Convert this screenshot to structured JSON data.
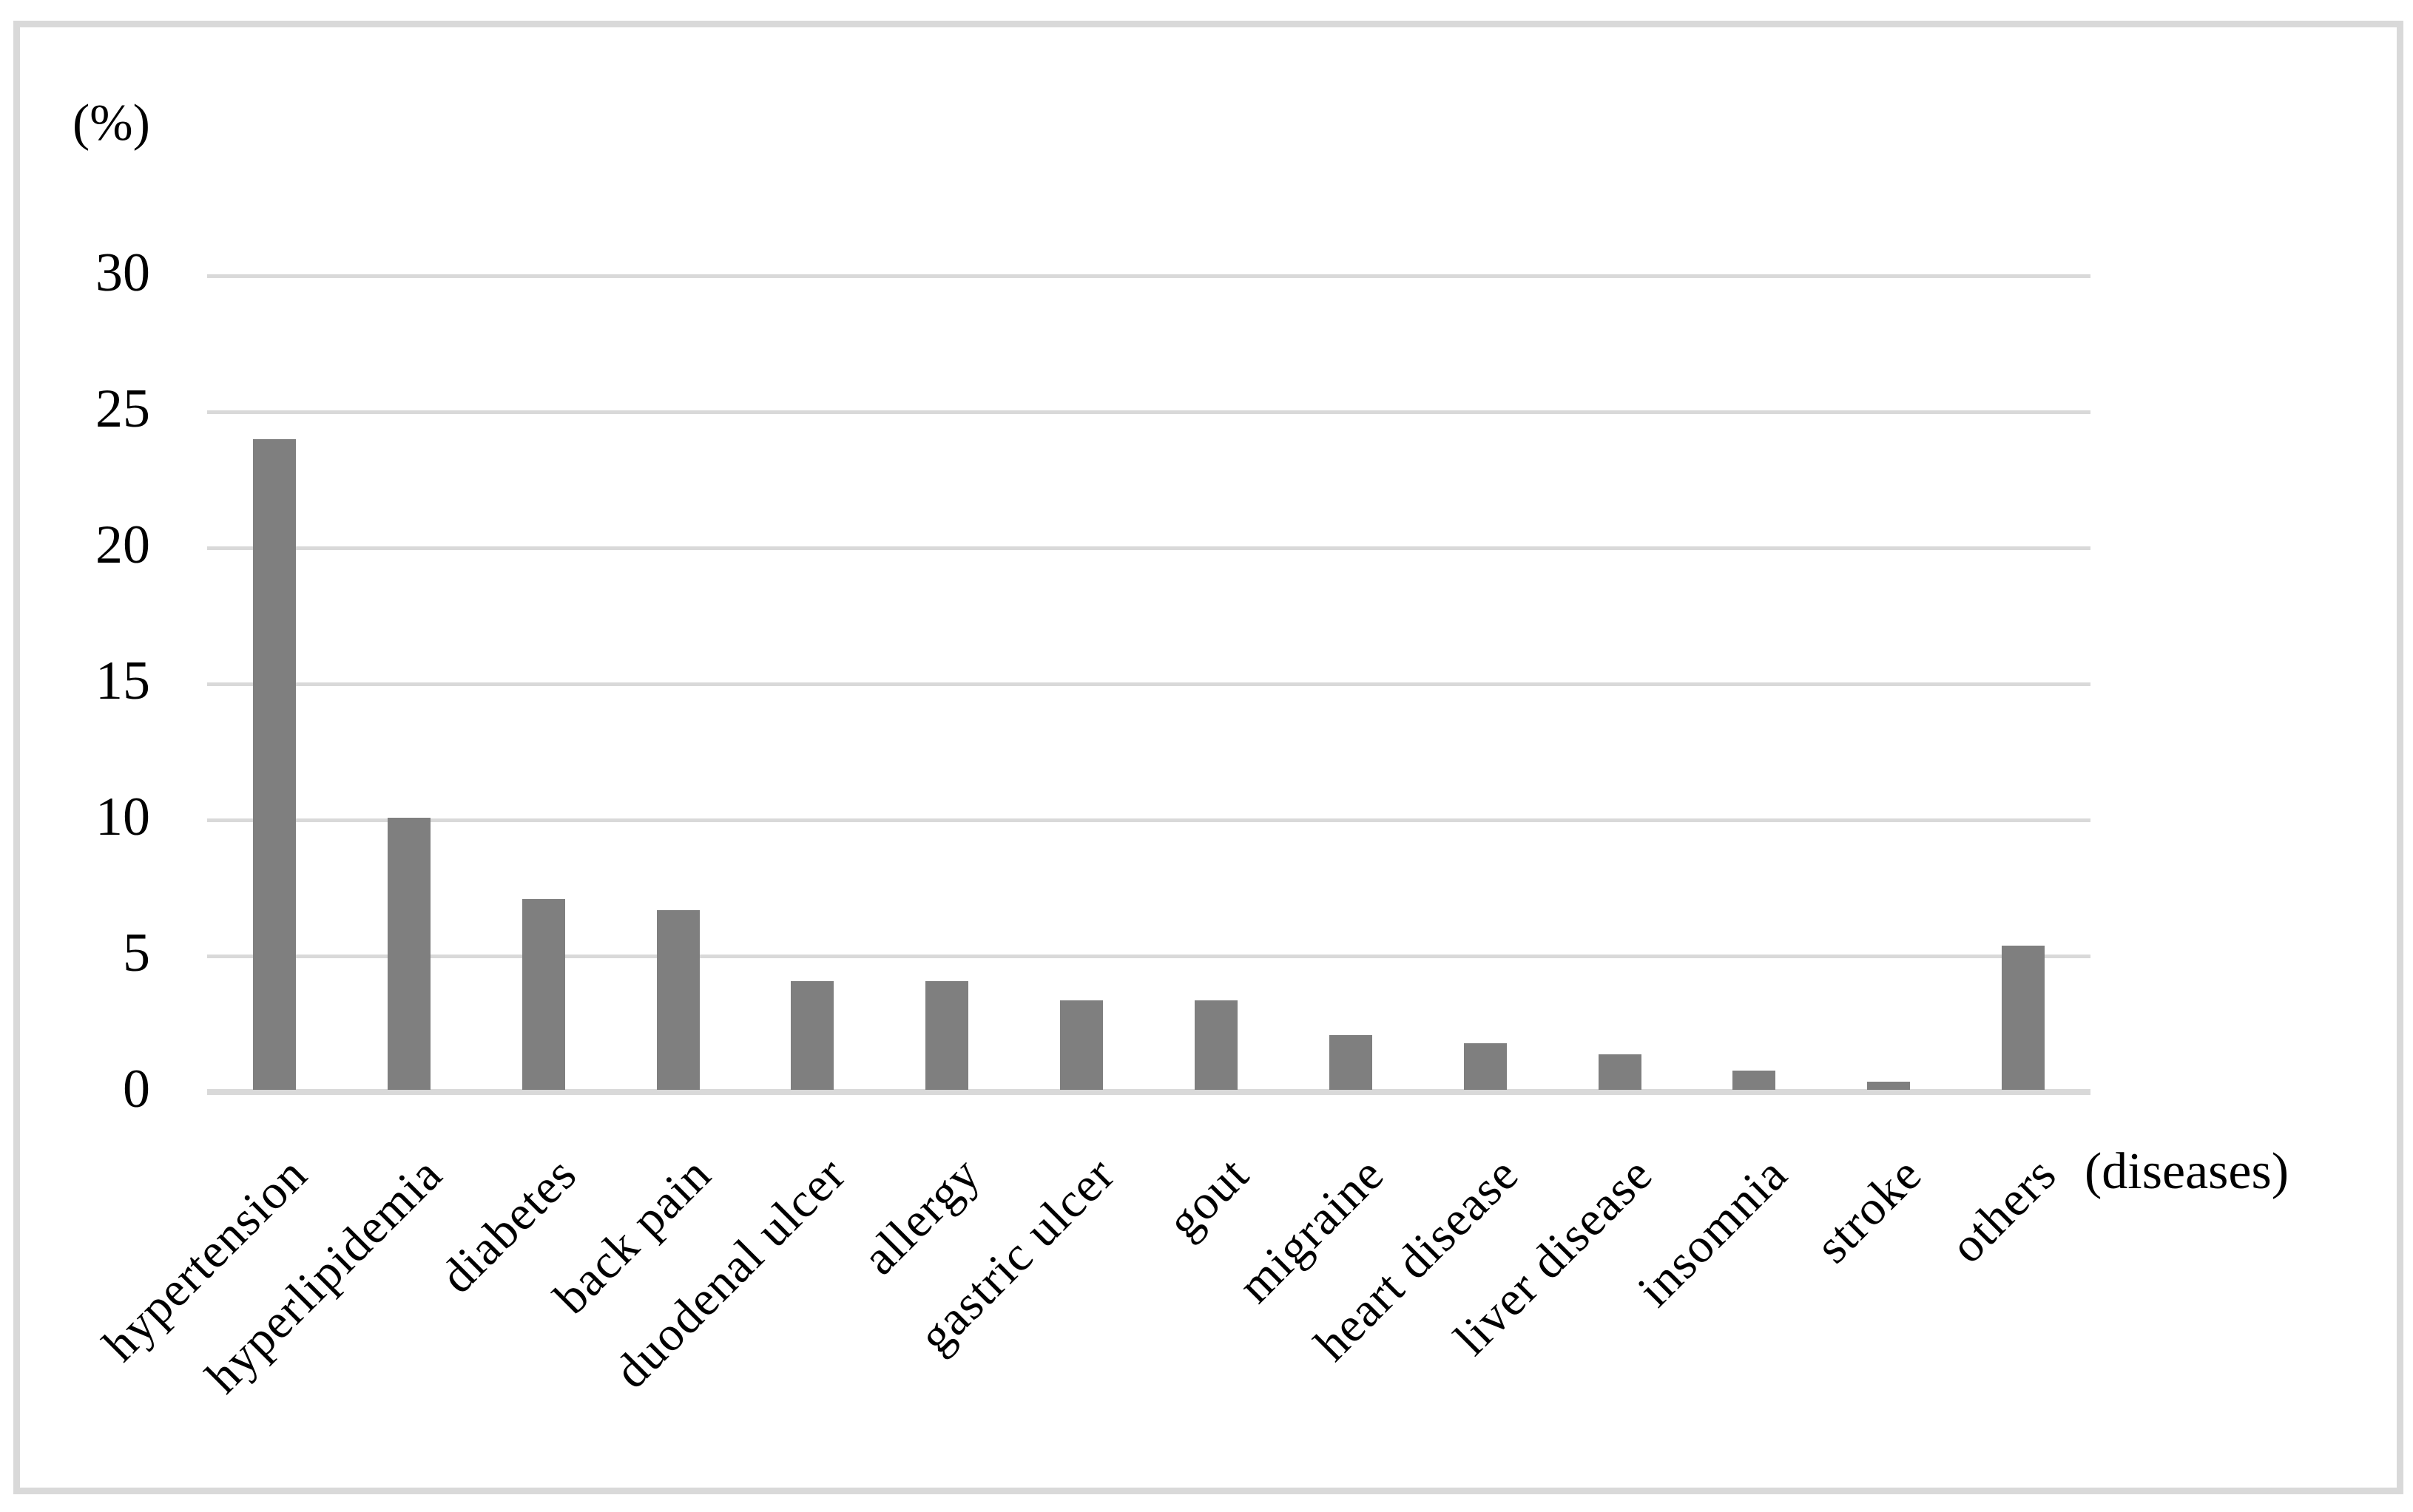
{
  "chart_data": {
    "type": "bar",
    "title": "",
    "categories": [
      "hypertension",
      "hyperlipidemia",
      "diabetes",
      "back pain",
      "duodenal ulcer",
      "allergy",
      "gastric ulcer",
      "gout",
      "migraine",
      "heart disease",
      "liver disease",
      "insomnia",
      "stroke",
      "others"
    ],
    "values": [
      23.9,
      10.0,
      7.0,
      6.6,
      4.0,
      4.0,
      3.3,
      3.3,
      2.0,
      1.7,
      1.3,
      0.7,
      0.3,
      5.3
    ],
    "xlabel": "(diseases)",
    "ylabel": "(%)",
    "ylim": [
      0,
      30
    ],
    "yticks": [
      0,
      5,
      10,
      15,
      20,
      25,
      30
    ],
    "ytick_labels": [
      "0",
      "5",
      "10",
      "15",
      "20",
      "25",
      "30"
    ],
    "grid": true,
    "legend": false,
    "bar_color": "#7f7f7f",
    "gridline_color": "#d9d9d9",
    "axis_line_color": "#d9d9d9",
    "frame_color": "#d9d9d9",
    "text_color": "#000000",
    "background_color": "#ffffff"
  }
}
